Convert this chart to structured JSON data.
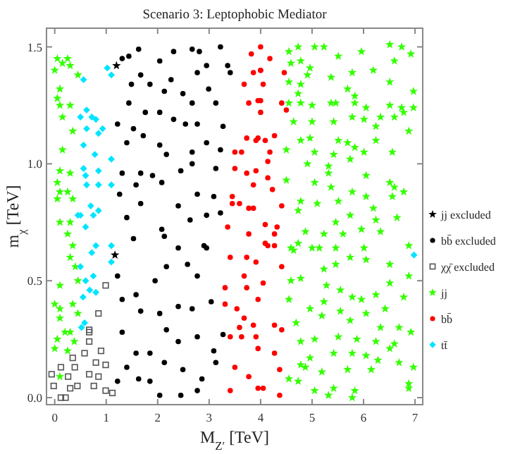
{
  "chart_data": {
    "type": "scatter",
    "title": "Scenario 3: Leptophobic Mediator",
    "xlabel": "M$_{Z′}$ [TeV]",
    "ylabel": "m$_{χ}$ [TeV]",
    "xlim": [
      -0.16,
      7.15
    ],
    "ylim": [
      -0.03,
      1.58
    ],
    "xticks": [
      0,
      1,
      2,
      3,
      4,
      5,
      6,
      7
    ],
    "yticks": [
      {
        "value": 0,
        "label": "0.0"
      },
      {
        "value": 0.5,
        "label": "0.5"
      },
      {
        "value": 1,
        "label": "1.0"
      },
      {
        "value": 1.5,
        "label": "1.5"
      }
    ],
    "legend": "right",
    "grid": false,
    "series": [
      {
        "name": "jj excluded",
        "color": "#000000",
        "marker": "star",
        "x": [
          1.17,
          1.2
        ],
        "values": [
          0.61,
          1.42
        ]
      },
      {
        "name": "bb̄ excluded",
        "color": "#000000",
        "marker": "circle",
        "x": [
          1.31,
          1.44,
          1.63,
          2.04,
          2.31,
          2.67,
          2.81,
          3.22,
          1.67,
          1.49,
          1.85,
          2.26,
          2.77,
          2.95,
          3.36,
          3.41,
          2.49,
          2.13,
          2.99,
          1.44,
          3.13,
          2.67,
          2.04,
          1.76,
          1.22,
          1.53,
          2.31,
          2.54,
          2.77,
          3.27,
          1.4,
          1.72,
          2.04,
          2.17,
          2.67,
          2.95,
          3.22,
          1.31,
          1.67,
          1.9,
          2.45,
          2.67,
          3.13,
          1.26,
          1.58,
          2.08,
          2.4,
          2.77,
          3.09,
          1.67,
          1.4,
          2.08,
          2.63,
          2.95,
          3.22,
          1.53,
          2.4,
          2.9,
          2.13,
          1.22,
          1.31,
          1.58,
          1.95,
          2.17,
          2.58,
          2.77,
          2.95,
          1.67,
          2.04,
          2.4,
          2.67,
          3.04,
          1.31,
          1.58,
          1.85,
          2.17,
          2.4,
          2.77,
          3.09,
          1.4,
          1.63,
          1.85,
          2.13,
          2.49,
          2.86,
          3.13,
          2.04,
          2.45,
          2.77,
          1.22,
          3.27
        ],
        "values": [
          1.45,
          1.46,
          1.49,
          1.44,
          1.48,
          1.49,
          1.48,
          1.5,
          1.38,
          1.34,
          1.34,
          1.36,
          1.39,
          1.42,
          1.42,
          1.39,
          1.3,
          1.31,
          1.32,
          1.26,
          1.26,
          1.26,
          1.22,
          1.22,
          1.17,
          1.15,
          1.19,
          1.17,
          1.17,
          1.16,
          1.09,
          1.12,
          1.08,
          1.04,
          1.05,
          1.09,
          1.06,
          0.96,
          0.96,
          0.95,
          0.97,
          1.0,
          0.98,
          0.87,
          0.91,
          0.92,
          0.82,
          0.87,
          0.86,
          0.83,
          0.77,
          0.72,
          0.76,
          0.78,
          0.79,
          0.68,
          0.64,
          0.65,
          0.69,
          0.52,
          0.42,
          0.44,
          0.5,
          0.56,
          0.57,
          0.52,
          0.64,
          0.37,
          0.36,
          0.39,
          0.38,
          0.41,
          0.28,
          0.19,
          0.19,
          0.29,
          0.24,
          0.26,
          0.2,
          0.13,
          0.08,
          0.07,
          0.15,
          0.12,
          0.08,
          0.15,
          0.01,
          0.01,
          0.03,
          0.07,
          0.27
        ]
      },
      {
        "name": "χχ̄ excluded",
        "color": "#555555",
        "marker": "square",
        "x": [
          0.99,
          0.85,
          0.67,
          0.67,
          0.58,
          0.9,
          0.35,
          0.12,
          0.39,
          0.99,
          0.67,
          0.85,
          0.26,
          -0.06,
          0.44,
          0.3,
          0.76,
          0.99,
          1.12,
          0.12,
          0.21,
          -0.02,
          0.8,
          0.67
        ],
        "values": [
          0.48,
          0.36,
          0.28,
          0.24,
          0.19,
          0.2,
          0.17,
          0.13,
          0.13,
          0.14,
          0.1,
          0.09,
          0.09,
          0.1,
          0.05,
          0.04,
          0.05,
          0.03,
          0.02,
          0.0,
          0.0,
          0.05,
          0.15,
          0.29
        ]
      },
      {
        "name": "jj",
        "color": "#33ff00",
        "marker": "star",
        "x": [
          0.05,
          0.25,
          0.0,
          0.15,
          0.3,
          0.45,
          0.1,
          0.05,
          0.1,
          0.3,
          0.15,
          0.35,
          0.15,
          0.1,
          0.3,
          0.05,
          0.1,
          0.25,
          0.35,
          0.05,
          0.1,
          0.3,
          0.25,
          0.35,
          0.3,
          0.4,
          0.1,
          0.45,
          0.0,
          0.1,
          0.35,
          0.1,
          0.45,
          0.3,
          0.2,
          0.05,
          0.0,
          0.38,
          0.25,
          0.1,
          4.55,
          4.73,
          5.05,
          5.23,
          4.78,
          4.59,
          4.96,
          5.51,
          5.78,
          6.19,
          5.96,
          6.51,
          6.74,
          6.6,
          6.92,
          4.55,
          4.78,
          4.73,
          4.91,
          5.37,
          5.69,
          5.83,
          6.51,
          6.97,
          4.55,
          4.78,
          5.0,
          5.37,
          5.46,
          5.83,
          6.05,
          6.51,
          6.74,
          6.97,
          6.78,
          4.64,
          5.0,
          5.42,
          5.78,
          6.01,
          6.33,
          6.6,
          6.24,
          6.88,
          4.78,
          4.96,
          5.51,
          5.69,
          5.83,
          6.24,
          6.01,
          4.5,
          5.05,
          5.42,
          6.56,
          4.91,
          5.32,
          5.74,
          5.32,
          6.05,
          6.51,
          6.6,
          4.5,
          5.05,
          5.37,
          5.78,
          6.05,
          6.56,
          6.78,
          4.78,
          5.1,
          5.51,
          6.19,
          4.73,
          5.46,
          5.74,
          6.24,
          6.65,
          4.87,
          5.23,
          5.6,
          6.33,
          5.96,
          4.59,
          5.14,
          5.46,
          6.01,
          6.88,
          4.73,
          5.0,
          4.64,
          5.23,
          5.46,
          5.74,
          6.05,
          6.51,
          6.88,
          4.59,
          4.78,
          5.28,
          5.55,
          5.78,
          5.96,
          6.24,
          6.51,
          4.55,
          4.96,
          5.23,
          5.55,
          6.05,
          6.42,
          6.78,
          4.69,
          5.19,
          5.74,
          6.33,
          6.69,
          6.92,
          4.78,
          5.05,
          5.51,
          5.87,
          6.24,
          6.6,
          5.42,
          5.78,
          6.05,
          4.96,
          6.51,
          6.69,
          6.97,
          4.87,
          4.73,
          5.19,
          5.69,
          6.15,
          4.55,
          5.05,
          5.42,
          5.83,
          5.32,
          6.88,
          6.88,
          5.78,
          6.28,
          4.78
        ],
        "values": [
          1.45,
          1.45,
          1.4,
          1.43,
          1.42,
          1.38,
          1.32,
          1.28,
          1.25,
          1.25,
          1.2,
          1.14,
          1.06,
          0.97,
          0.96,
          0.92,
          0.88,
          0.88,
          0.85,
          0.85,
          0.75,
          0.75,
          0.7,
          0.65,
          0.6,
          0.56,
          0.48,
          0.5,
          0.4,
          0.38,
          0.4,
          0.34,
          0.36,
          0.28,
          0.28,
          0.25,
          0.21,
          0.24,
          0.2,
          0.09,
          1.48,
          1.5,
          1.5,
          1.5,
          1.44,
          1.43,
          1.41,
          1.46,
          1.39,
          1.4,
          1.48,
          1.51,
          1.5,
          1.44,
          1.47,
          1.35,
          1.34,
          1.3,
          1.38,
          1.37,
          1.32,
          1.29,
          1.35,
          1.31,
          1.26,
          1.26,
          1.25,
          1.26,
          1.26,
          1.26,
          1.24,
          1.25,
          1.24,
          1.24,
          1.22,
          1.18,
          1.18,
          1.18,
          1.2,
          1.19,
          1.2,
          1.2,
          1.16,
          1.14,
          1.1,
          1.11,
          1.1,
          1.09,
          1.07,
          1.1,
          1.05,
          1.06,
          1.05,
          1.04,
          1.05,
          1.0,
          0.99,
          1.02,
          0.96,
          0.95,
          0.92,
          0.9,
          0.93,
          0.92,
          0.9,
          0.88,
          0.86,
          0.86,
          0.88,
          0.84,
          0.83,
          0.84,
          0.81,
          0.8,
          0.75,
          0.78,
          0.76,
          0.77,
          0.71,
          0.7,
          0.7,
          0.71,
          0.72,
          0.64,
          0.64,
          0.64,
          0.64,
          0.65,
          0.66,
          0.64,
          0.63,
          0.55,
          0.57,
          0.6,
          0.59,
          0.57,
          0.52,
          0.5,
          0.51,
          0.48,
          0.46,
          0.43,
          0.42,
          0.44,
          0.49,
          0.42,
          0.38,
          0.41,
          0.37,
          0.36,
          0.38,
          0.43,
          0.32,
          0.35,
          0.33,
          0.3,
          0.3,
          0.28,
          0.24,
          0.25,
          0.26,
          0.25,
          0.24,
          0.23,
          0.19,
          0.19,
          0.18,
          0.17,
          0.21,
          0.15,
          0.13,
          0.13,
          0.07,
          0.11,
          0.12,
          0.12,
          0.08,
          0.03,
          0.04,
          0.03,
          0.01,
          0.06,
          0.04,
          0.0,
          0.16,
          0.14
        ]
      },
      {
        "name": "bb̄",
        "color": "#ff0000",
        "marker": "circle",
        "x": [
          4.18,
          4.0,
          3.86,
          4.05,
          4.46,
          4.0,
          4.0,
          4.41,
          4.5,
          3.95,
          4.09,
          4.27,
          4.18,
          3.91,
          4.14,
          4.14,
          4.23,
          3.86,
          4.41,
          4.09,
          4.32,
          4.27,
          4.14,
          4.27,
          4.0,
          3.82,
          4.0,
          3.68,
          3.95,
          3.77,
          3.73,
          3.91,
          3.5,
          3.63,
          3.5,
          3.73,
          3.86,
          3.45,
          3.59,
          3.45,
          3.77,
          3.36,
          3.77,
          4.09,
          3.41,
          3.73,
          3.91,
          3.68,
          3.31,
          3.73,
          4.05,
          3.31,
          3.54,
          3.95,
          3.68,
          3.86,
          3.59,
          3.41,
          3.63,
          3.91,
          3.5,
          3.77,
          3.41,
          3.95,
          4.27,
          4.41,
          4.37,
          4.37,
          4.05,
          3.95,
          4.41,
          4.27
        ],
        "values": [
          1.45,
          1.4,
          1.39,
          1.34,
          1.39,
          1.27,
          1.22,
          1.26,
          1.23,
          1.11,
          1.1,
          1.12,
          1.05,
          0.97,
          1.01,
          0.94,
          0.89,
          0.81,
          0.82,
          0.74,
          0.73,
          0.7,
          0.65,
          0.65,
          1.5,
          1.47,
          1.4,
          1.34,
          1.27,
          1.26,
          1.11,
          1.1,
          1.05,
          1.05,
          0.98,
          0.96,
          0.91,
          0.86,
          0.83,
          0.83,
          0.81,
          0.73,
          0.7,
          0.66,
          0.6,
          0.6,
          0.58,
          0.52,
          0.47,
          0.47,
          0.49,
          0.4,
          0.38,
          0.42,
          0.34,
          0.31,
          0.3,
          0.26,
          0.26,
          0.26,
          0.13,
          0.09,
          0.03,
          0.04,
          0.31,
          0.29,
          0.12,
          0.01,
          0.04,
          0.21,
          0.56,
          0.19
        ]
      },
      {
        "name": "tt̄",
        "color": "#00e5ff",
        "marker": "diamond",
        "x": [
          1.02,
          1.1,
          0.56,
          0.62,
          0.5,
          0.72,
          0.8,
          0.62,
          0.85,
          0.93,
          0.56,
          0.78,
          1.1,
          0.56,
          0.6,
          0.85,
          0.62,
          0.85,
          1.1,
          0.7,
          0.85,
          0.5,
          0.75,
          0.45,
          0.6,
          0.8,
          0.72,
          1.1,
          0.5,
          0.75,
          0.6,
          0.68,
          0.8,
          0.55,
          0.52,
          0.58,
          1.1,
          6.98
        ],
        "values": [
          1.41,
          1.38,
          1.36,
          1.23,
          1.2,
          1.2,
          1.19,
          1.15,
          1.13,
          1.15,
          1.08,
          1.04,
          1.02,
          0.98,
          0.95,
          0.97,
          0.91,
          0.91,
          0.91,
          0.82,
          0.8,
          0.78,
          0.78,
          0.78,
          0.73,
          0.65,
          0.62,
          0.58,
          0.56,
          0.52,
          0.5,
          0.46,
          0.45,
          0.43,
          0.3,
          0.32,
          0.65,
          0.61
        ]
      }
    ]
  }
}
